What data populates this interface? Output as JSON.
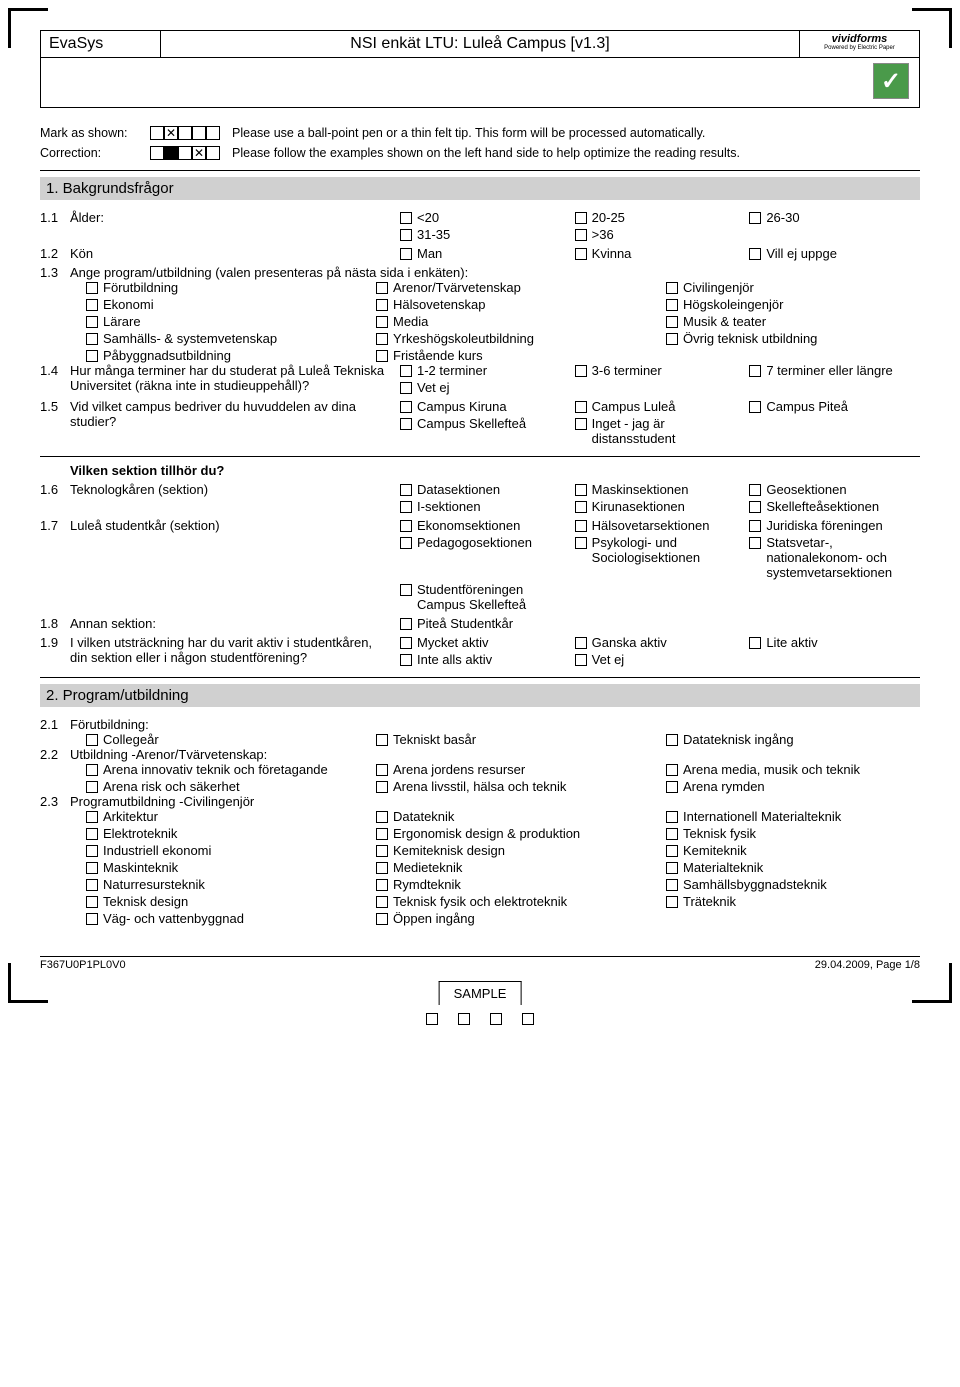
{
  "header": {
    "system": "EvaSys",
    "title": "NSI enkät LTU: Luleå Campus [v1.3]",
    "brand": "vividforms",
    "brand_sub": "Powered by Electric Paper"
  },
  "instructions": {
    "mark_label": "Mark as shown:",
    "mark_text": "Please use a ball-point pen or a thin felt tip. This form will be processed automatically.",
    "corr_label": "Correction:",
    "corr_text": "Please follow the examples shown on the left hand side to help optimize the reading results."
  },
  "section1": {
    "title": "1. Bakgrundsfrågor",
    "q11": {
      "num": "1.1",
      "text": "Ålder:",
      "opts": [
        "<20",
        "20-25",
        "26-30",
        "31-35",
        ">36"
      ]
    },
    "q12": {
      "num": "1.2",
      "text": "Kön",
      "opts": [
        "Man",
        "Kvinna",
        "Vill ej uppge"
      ]
    },
    "q13": {
      "num": "1.3",
      "text": "Ange program/utbildning (valen presenteras på nästa sida i enkäten):",
      "opts": [
        "Förutbildning",
        "Arenor/Tvärvetenskap",
        "Civilingenjör",
        "Ekonomi",
        "Hälsovetenskap",
        "Högskoleingenjör",
        "Lärare",
        "Media",
        "Musik & teater",
        "Samhälls- & systemvetenskap",
        "Yrkeshögskoleutbildning",
        "Övrig teknisk utbildning",
        "Påbyggnadsutbildning",
        "Fristående kurs"
      ]
    },
    "q14": {
      "num": "1.4",
      "text": "Hur många terminer har du studerat på Luleå Tekniska Universitet (räkna inte in studieuppehåll)?",
      "opts": [
        "1-2 terminer",
        "3-6 terminer",
        "7 terminer eller längre",
        "Vet ej"
      ]
    },
    "q15": {
      "num": "1.5",
      "text": "Vid vilket campus bedriver du huvuddelen av dina studier?",
      "opts": [
        "Campus Kiruna",
        "Campus Luleå",
        "Campus Piteå",
        "Campus Skellefteå",
        "Inget - jag är distansstudent"
      ]
    },
    "subhead": "Vilken sektion tillhör du?",
    "q16": {
      "num": "1.6",
      "text": "Teknologkåren (sektion)",
      "opts": [
        "Datasektionen",
        "Maskinsektionen",
        "Geosektionen",
        "I-sektionen",
        "Kirunasektionen",
        "Skellefteåsektionen"
      ]
    },
    "q17": {
      "num": "1.7",
      "text": "Luleå studentkår (sektion)",
      "opts": [
        "Ekonomsektionen",
        "Hälsovetarsektionen",
        "Juridiska föreningen",
        "Pedagogosektionen",
        "Psykologi- und Sociologisektionen",
        "Statsvetar-, nationalekonom- och systemvetarsektionen",
        "Studentföreningen Campus Skellefteå"
      ]
    },
    "q18": {
      "num": "1.8",
      "text": "Annan sektion:",
      "opts": [
        "Piteå Studentkår"
      ]
    },
    "q19": {
      "num": "1.9",
      "text": "I vilken utsträckning har du varit aktiv i studentkåren, din sektion eller i någon studentförening?",
      "opts": [
        "Mycket aktiv",
        "Ganska aktiv",
        "Lite aktiv",
        "Inte alls aktiv",
        "Vet ej"
      ]
    }
  },
  "section2": {
    "title": "2. Program/utbildning",
    "q21": {
      "num": "2.1",
      "text": "Förutbildning:",
      "opts": [
        "Collegeår",
        "Tekniskt basår",
        "Datateknisk ingång"
      ]
    },
    "q22": {
      "num": "2.2",
      "text": "Utbildning -Arenor/Tvärvetenskap:",
      "opts": [
        "Arena innovativ teknik och företagande",
        "Arena jordens resurser",
        "Arena media, musik och teknik",
        "Arena risk och säkerhet",
        "Arena livsstil, hälsa och teknik",
        "Arena rymden"
      ]
    },
    "q23": {
      "num": "2.3",
      "text": "Programutbildning -Civilingenjör",
      "opts": [
        "Arkitektur",
        "Datateknik",
        "Internationell Materialteknik",
        "Elektroteknik",
        "Ergonomisk design & produktion",
        "Teknisk fysik",
        "Industriell ekonomi",
        "Kemiteknisk design",
        "Kemiteknik",
        "Maskinteknik",
        "Medieteknik",
        "Materialteknik",
        "Naturresursteknik",
        "Rymdteknik",
        "Samhällsbyggnadsteknik",
        "Teknisk design",
        "Teknisk fysik och elektroteknik",
        "Träteknik",
        "Väg- och vattenbyggnad",
        "Öppen ingång"
      ]
    }
  },
  "footer": {
    "code": "F367U0P1PL0V0",
    "page": "29.04.2009, Page 1/8",
    "sample": "SAMPLE"
  }
}
